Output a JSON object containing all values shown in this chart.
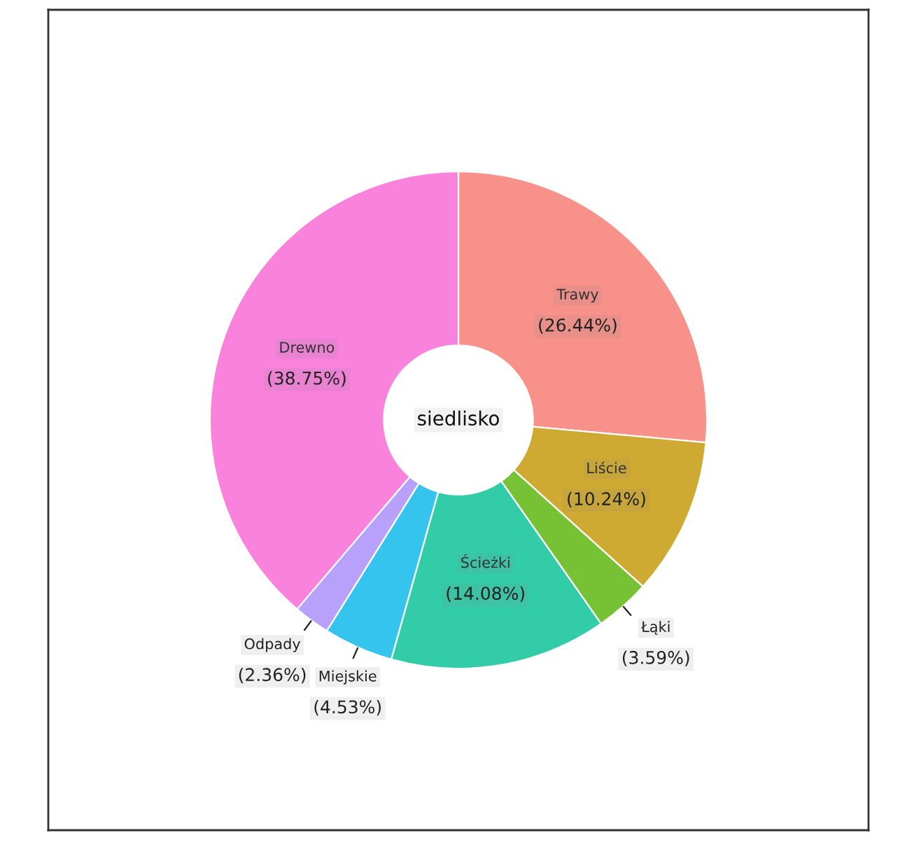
{
  "chart_data": {
    "type": "donut",
    "title": "siedlisko",
    "categories": [
      "Trawy",
      "Liście",
      "Łąki",
      "Ścieżki",
      "Miejskie",
      "Odpady",
      "Drewno"
    ],
    "values": [
      26.44,
      10.24,
      3.59,
      14.08,
      4.53,
      2.36,
      38.75
    ],
    "colors": [
      "#f8918a",
      "#cfaa32",
      "#76c234",
      "#33cca8",
      "#35c4ee",
      "#b8a1fa",
      "#f982dc"
    ],
    "value_labels": [
      "(26.44%)",
      "(10.24%)",
      "(3.59%)",
      "(14.08%)",
      "(4.53%)",
      "(2.36%)",
      "(38.75%)"
    ]
  }
}
